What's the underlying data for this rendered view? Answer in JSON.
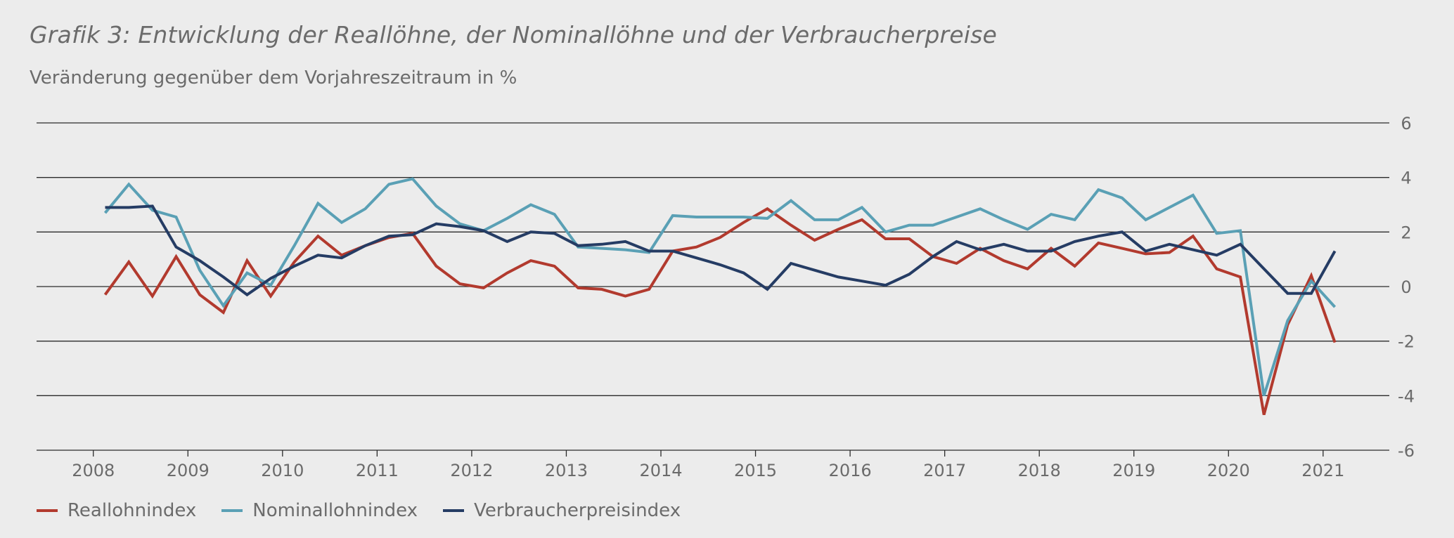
{
  "title": "Grafik 3: Entwicklung der Reallöhne, der Nominallöhne und der Verbraucherpreise",
  "subtitle": "Veränderung gegenüber dem Vorjahreszeitraum in %",
  "legend": [
    {
      "label": "Reallohnindex",
      "color": "#b23a2e"
    },
    {
      "label": "Nominallohnindex",
      "color": "#5aa0b5"
    },
    {
      "label": "Verbraucherpreisindex",
      "color": "#253c64"
    }
  ],
  "chart_data": {
    "type": "line",
    "xlim": [
      2007.4,
      2021.7
    ],
    "ylim": [
      -6,
      6
    ],
    "y_ticks": [
      6,
      4,
      2,
      0,
      -2,
      -4,
      -6
    ],
    "x_ticks": [
      "2008",
      "2009",
      "2010",
      "2011",
      "2012",
      "2013",
      "2014",
      "2015",
      "2016",
      "2017",
      "2018",
      "2019",
      "2020",
      "2021"
    ],
    "grid": true,
    "legend_position": "bottom-left",
    "series": [
      {
        "name": "Reallohnindex",
        "color": "#b23a2e",
        "points": [
          [
            2008.125,
            -0.3
          ],
          [
            2008.375,
            0.9
          ],
          [
            2008.625,
            -0.35
          ],
          [
            2008.875,
            1.1
          ],
          [
            2009.125,
            -0.3
          ],
          [
            2009.375,
            -0.95
          ],
          [
            2009.625,
            0.95
          ],
          [
            2009.875,
            -0.35
          ],
          [
            2010.125,
            0.9
          ],
          [
            2010.375,
            1.85
          ],
          [
            2010.625,
            1.15
          ],
          [
            2010.875,
            1.5
          ],
          [
            2011.125,
            1.8
          ],
          [
            2011.375,
            1.95
          ],
          [
            2011.625,
            0.75
          ],
          [
            2011.875,
            0.1
          ],
          [
            2012.125,
            -0.05
          ],
          [
            2012.375,
            0.5
          ],
          [
            2012.625,
            0.95
          ],
          [
            2012.875,
            0.75
          ],
          [
            2013.125,
            -0.05
          ],
          [
            2013.375,
            -0.1
          ],
          [
            2013.625,
            -0.35
          ],
          [
            2013.875,
            -0.1
          ],
          [
            2014.125,
            1.3
          ],
          [
            2014.375,
            1.45
          ],
          [
            2014.625,
            1.8
          ],
          [
            2014.875,
            2.35
          ],
          [
            2015.125,
            2.85
          ],
          [
            2015.375,
            2.25
          ],
          [
            2015.625,
            1.7
          ],
          [
            2015.875,
            2.1
          ],
          [
            2016.125,
            2.45
          ],
          [
            2016.375,
            1.75
          ],
          [
            2016.625,
            1.75
          ],
          [
            2016.875,
            1.1
          ],
          [
            2017.125,
            0.85
          ],
          [
            2017.375,
            1.4
          ],
          [
            2017.625,
            0.95
          ],
          [
            2017.875,
            0.65
          ],
          [
            2018.125,
            1.4
          ],
          [
            2018.375,
            0.75
          ],
          [
            2018.625,
            1.6
          ],
          [
            2018.875,
            1.4
          ],
          [
            2019.125,
            1.2
          ],
          [
            2019.375,
            1.25
          ],
          [
            2019.625,
            1.85
          ],
          [
            2019.875,
            0.65
          ],
          [
            2020.125,
            0.35
          ],
          [
            2020.375,
            -4.7
          ],
          [
            2020.625,
            -1.4
          ],
          [
            2020.875,
            0.4
          ],
          [
            2021.125,
            -2.05
          ]
        ]
      },
      {
        "name": "Nominallohnindex",
        "color": "#5aa0b5",
        "points": [
          [
            2008.125,
            2.7
          ],
          [
            2008.375,
            3.75
          ],
          [
            2008.625,
            2.8
          ],
          [
            2008.875,
            2.55
          ],
          [
            2009.125,
            0.6
          ],
          [
            2009.375,
            -0.7
          ],
          [
            2009.625,
            0.5
          ],
          [
            2009.875,
            0.05
          ],
          [
            2010.125,
            1.5
          ],
          [
            2010.375,
            3.05
          ],
          [
            2010.625,
            2.35
          ],
          [
            2010.875,
            2.85
          ],
          [
            2011.125,
            3.75
          ],
          [
            2011.375,
            3.95
          ],
          [
            2011.625,
            2.95
          ],
          [
            2011.875,
            2.3
          ],
          [
            2012.125,
            2.05
          ],
          [
            2012.375,
            2.5
          ],
          [
            2012.625,
            3.0
          ],
          [
            2012.875,
            2.65
          ],
          [
            2013.125,
            1.45
          ],
          [
            2013.375,
            1.4
          ],
          [
            2013.625,
            1.35
          ],
          [
            2013.875,
            1.25
          ],
          [
            2014.125,
            2.6
          ],
          [
            2014.375,
            2.55
          ],
          [
            2014.625,
            2.55
          ],
          [
            2014.875,
            2.55
          ],
          [
            2015.125,
            2.5
          ],
          [
            2015.375,
            3.15
          ],
          [
            2015.625,
            2.45
          ],
          [
            2015.875,
            2.45
          ],
          [
            2016.125,
            2.9
          ],
          [
            2016.375,
            2.0
          ],
          [
            2016.625,
            2.25
          ],
          [
            2016.875,
            2.25
          ],
          [
            2017.125,
            2.55
          ],
          [
            2017.375,
            2.85
          ],
          [
            2017.625,
            2.45
          ],
          [
            2017.875,
            2.1
          ],
          [
            2018.125,
            2.65
          ],
          [
            2018.375,
            2.45
          ],
          [
            2018.625,
            3.55
          ],
          [
            2018.875,
            3.25
          ],
          [
            2019.125,
            2.45
          ],
          [
            2019.375,
            2.9
          ],
          [
            2019.625,
            3.35
          ],
          [
            2019.875,
            1.95
          ],
          [
            2020.125,
            2.05
          ],
          [
            2020.375,
            -4.0
          ],
          [
            2020.625,
            -1.25
          ],
          [
            2020.875,
            0.2
          ],
          [
            2021.125,
            -0.75
          ]
        ]
      },
      {
        "name": "Verbraucherpreisindex",
        "color": "#253c64",
        "points": [
          [
            2008.125,
            2.9
          ],
          [
            2008.375,
            2.9
          ],
          [
            2008.625,
            2.95
          ],
          [
            2008.875,
            1.45
          ],
          [
            2009.125,
            0.95
          ],
          [
            2009.375,
            0.35
          ],
          [
            2009.625,
            -0.3
          ],
          [
            2009.875,
            0.3
          ],
          [
            2010.125,
            0.75
          ],
          [
            2010.375,
            1.15
          ],
          [
            2010.625,
            1.05
          ],
          [
            2010.875,
            1.5
          ],
          [
            2011.125,
            1.85
          ],
          [
            2011.375,
            1.9
          ],
          [
            2011.625,
            2.3
          ],
          [
            2011.875,
            2.2
          ],
          [
            2012.125,
            2.05
          ],
          [
            2012.375,
            1.65
          ],
          [
            2012.625,
            2.0
          ],
          [
            2012.875,
            1.95
          ],
          [
            2013.125,
            1.5
          ],
          [
            2013.375,
            1.55
          ],
          [
            2013.625,
            1.65
          ],
          [
            2013.875,
            1.3
          ],
          [
            2014.125,
            1.3
          ],
          [
            2014.375,
            1.05
          ],
          [
            2014.625,
            0.8
          ],
          [
            2014.875,
            0.5
          ],
          [
            2015.125,
            -0.1
          ],
          [
            2015.375,
            0.85
          ],
          [
            2015.625,
            0.6
          ],
          [
            2015.875,
            0.35
          ],
          [
            2016.125,
            0.2
          ],
          [
            2016.375,
            0.05
          ],
          [
            2016.625,
            0.45
          ],
          [
            2016.875,
            1.1
          ],
          [
            2017.125,
            1.65
          ],
          [
            2017.375,
            1.35
          ],
          [
            2017.625,
            1.55
          ],
          [
            2017.875,
            1.3
          ],
          [
            2018.125,
            1.3
          ],
          [
            2018.375,
            1.65
          ],
          [
            2018.625,
            1.85
          ],
          [
            2018.875,
            2.0
          ],
          [
            2019.125,
            1.3
          ],
          [
            2019.375,
            1.55
          ],
          [
            2019.625,
            1.35
          ],
          [
            2019.875,
            1.15
          ],
          [
            2020.125,
            1.55
          ],
          [
            2020.375,
            0.65
          ],
          [
            2020.625,
            -0.25
          ],
          [
            2020.875,
            -0.25
          ],
          [
            2021.125,
            1.3
          ]
        ]
      }
    ]
  }
}
